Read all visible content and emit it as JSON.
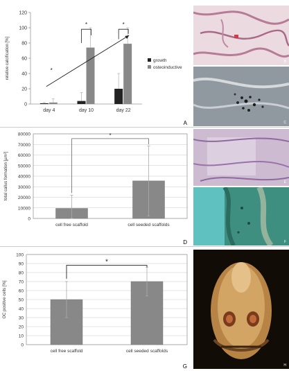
{
  "chart_data": [
    {
      "type": "bar",
      "panel_letter": "A",
      "ylabel": "relative calcification [%]",
      "yticks": [
        0,
        20,
        40,
        60,
        80,
        100,
        120
      ],
      "ylim": [
        0,
        120
      ],
      "categories": [
        "day 4",
        "day 10",
        "day 22"
      ],
      "series": [
        {
          "name": "growth",
          "color": "#222222",
          "values": [
            1,
            4,
            20
          ],
          "err": [
            1,
            11,
            20
          ]
        },
        {
          "name": "osteoinductive",
          "color": "#888888",
          "values": [
            2,
            74,
            79
          ],
          "err": [
            5,
            26,
            21
          ]
        }
      ],
      "legend_position": "right",
      "annotations": [
        "*",
        "*",
        "*"
      ],
      "grid": false
    },
    {
      "type": "bar",
      "panel_letter": "D",
      "ylabel": "total callus formation [µm²]",
      "yticks": [
        0,
        10000,
        20000,
        30000,
        40000,
        50000,
        60000,
        70000,
        80000
      ],
      "ylim": [
        0,
        80000
      ],
      "categories": [
        "cell free scaffold",
        "cell seeded scaffolds"
      ],
      "values": [
        9500,
        35500
      ],
      "err": [
        12500,
        33000
      ],
      "color": "#888888",
      "annotations": [
        "*"
      ],
      "grid": true
    },
    {
      "type": "bar",
      "panel_letter": "G",
      "ylabel": "OC positive cells [%]",
      "yticks": [
        0,
        10,
        20,
        30,
        40,
        50,
        60,
        70,
        80,
        90,
        100
      ],
      "ylim": [
        0,
        100
      ],
      "categories": [
        "cell free scaffold",
        "cell seeded scaffolds"
      ],
      "values": [
        50,
        70
      ],
      "err": [
        20,
        16
      ],
      "color": "#888888",
      "annotations": [
        "*"
      ],
      "grid": true
    }
  ],
  "photos": [
    {
      "letter": "B",
      "bg": "#e6cfd8"
    },
    {
      "letter": "C",
      "bg": "#9aa3a8"
    },
    {
      "letter": "E",
      "bg": "#c9b6cc"
    },
    {
      "letter": "F",
      "bg": "#3f8f7f"
    },
    {
      "letter": "H",
      "bg": "#1a120c"
    }
  ]
}
